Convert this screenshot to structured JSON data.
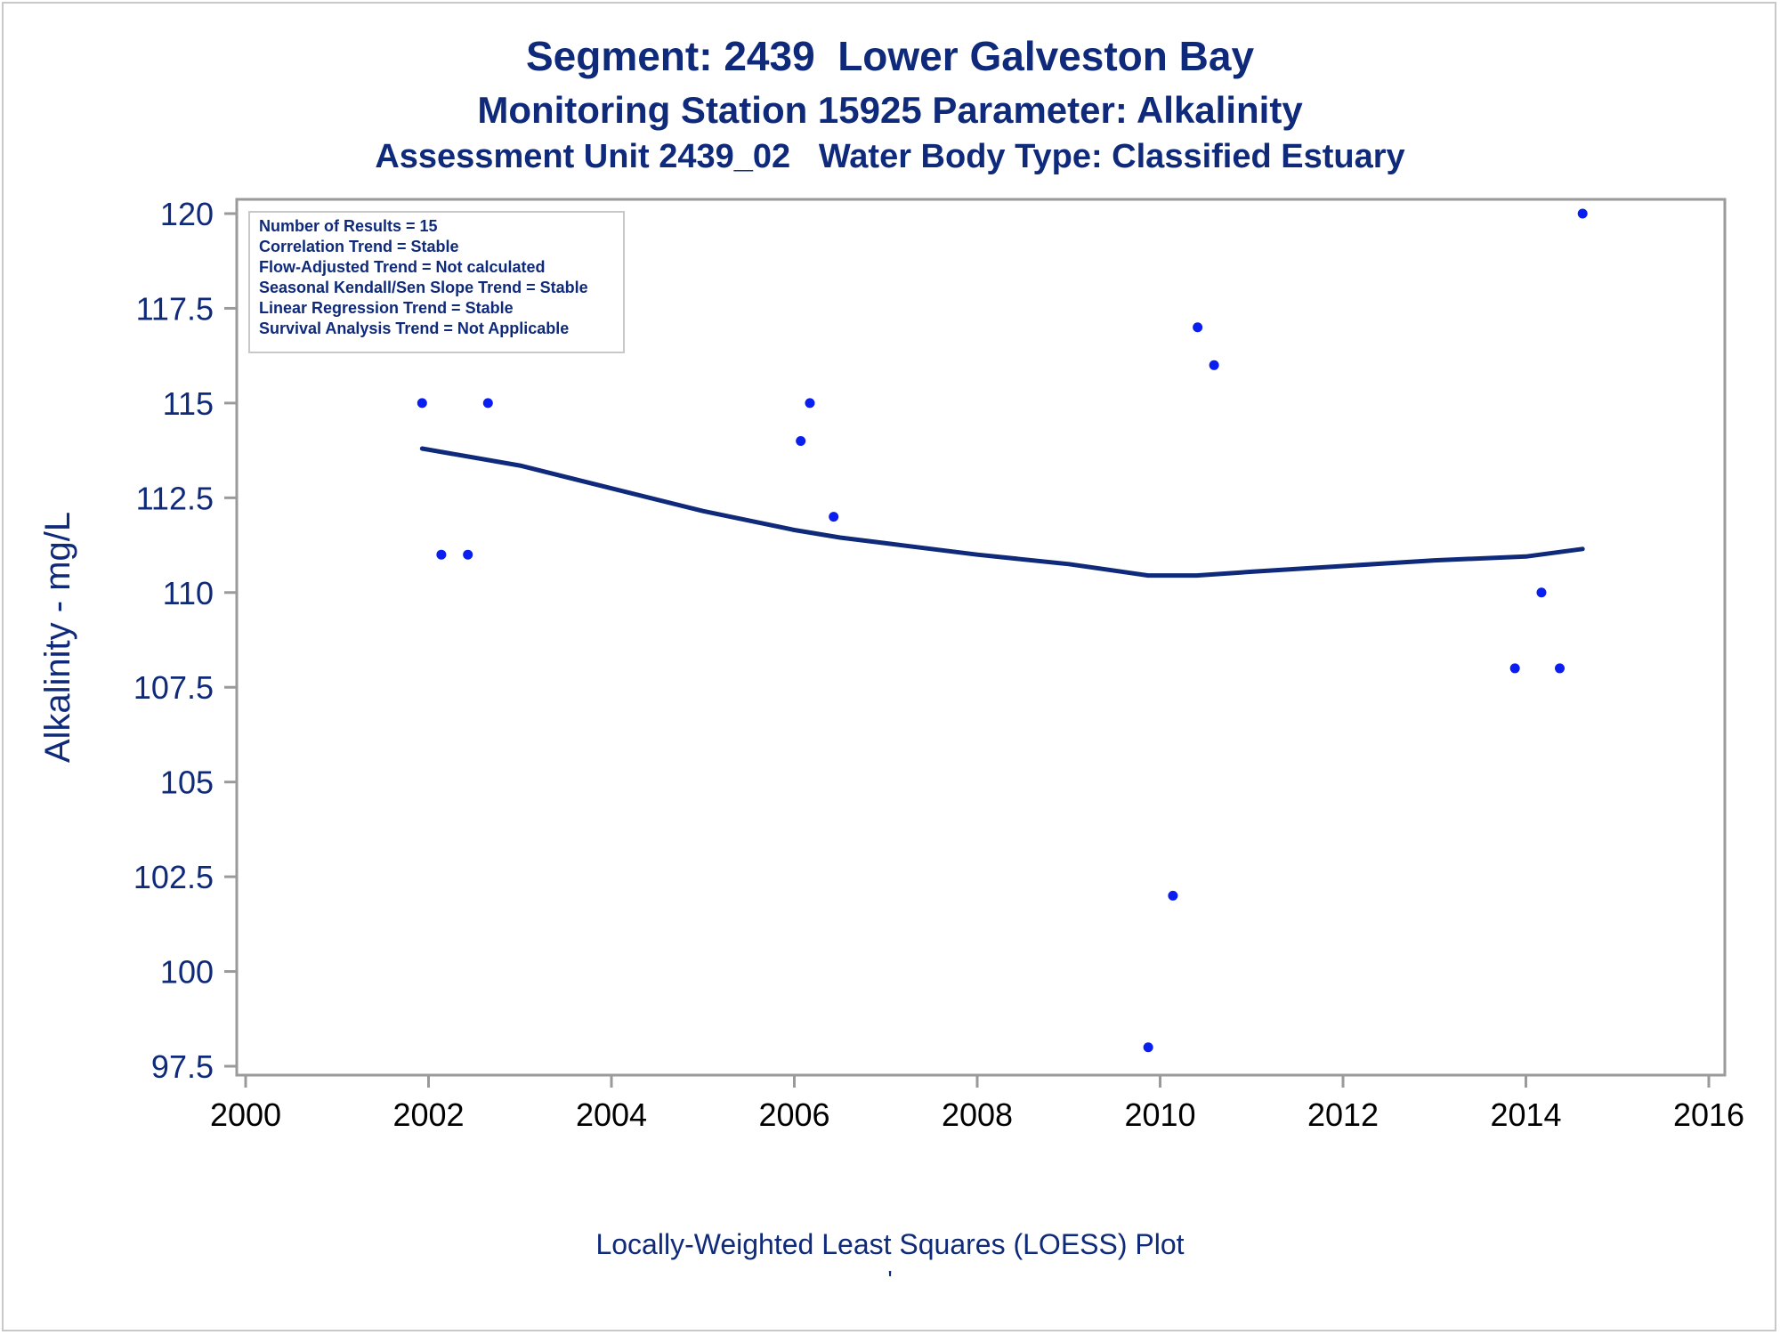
{
  "titles": {
    "line1": "Segment: 2439  Lower Galveston Bay",
    "line2": "Monitoring Station 15925 Parameter: Alkalinity",
    "line3": "Assessment Unit 2439_02   Water Body Type: Classified Estuary"
  },
  "footnote": "Locally-Weighted Least Squares (LOESS) Plot",
  "footnote_mark": "'",
  "colors": {
    "title": "#0f2a7a",
    "points": "#0a1ef0",
    "loess": "#0f2a7a",
    "axis": "#9a9a9a"
  },
  "chart_data": {
    "type": "scatter",
    "ylabel": "Alkalinity - mg/L",
    "xlim": [
      2000,
      2016
    ],
    "ylim": [
      97.5,
      120
    ],
    "x_ticks": [
      2000,
      2002,
      2004,
      2006,
      2008,
      2010,
      2012,
      2014,
      2016
    ],
    "y_ticks": [
      97.5,
      100,
      102.5,
      105,
      107.5,
      110,
      112.5,
      115,
      117.5,
      120
    ],
    "y_tick_labels": [
      "97.5",
      "100",
      "102.5",
      "105",
      "107.5",
      "110",
      "112.5",
      "115",
      "117.5",
      "120"
    ],
    "points": [
      {
        "x": 2001.93,
        "y": 115
      },
      {
        "x": 2002.14,
        "y": 111
      },
      {
        "x": 2002.43,
        "y": 111
      },
      {
        "x": 2002.65,
        "y": 115
      },
      {
        "x": 2006.07,
        "y": 114
      },
      {
        "x": 2006.17,
        "y": 115
      },
      {
        "x": 2006.43,
        "y": 112
      },
      {
        "x": 2009.87,
        "y": 98
      },
      {
        "x": 2010.14,
        "y": 102
      },
      {
        "x": 2010.41,
        "y": 117
      },
      {
        "x": 2010.59,
        "y": 116
      },
      {
        "x": 2013.88,
        "y": 108
      },
      {
        "x": 2014.17,
        "y": 110
      },
      {
        "x": 2014.37,
        "y": 108
      },
      {
        "x": 2014.62,
        "y": 120
      }
    ],
    "loess": [
      {
        "x": 2001.93,
        "y": 113.8
      },
      {
        "x": 2003.0,
        "y": 113.35
      },
      {
        "x": 2004.0,
        "y": 112.75
      },
      {
        "x": 2005.0,
        "y": 112.15
      },
      {
        "x": 2006.0,
        "y": 111.65
      },
      {
        "x": 2006.5,
        "y": 111.45
      },
      {
        "x": 2007.0,
        "y": 111.3
      },
      {
        "x": 2008.0,
        "y": 111.0
      },
      {
        "x": 2009.0,
        "y": 110.75
      },
      {
        "x": 2009.87,
        "y": 110.45
      },
      {
        "x": 2010.4,
        "y": 110.45
      },
      {
        "x": 2011.0,
        "y": 110.55
      },
      {
        "x": 2012.0,
        "y": 110.7
      },
      {
        "x": 2013.0,
        "y": 110.85
      },
      {
        "x": 2014.0,
        "y": 110.95
      },
      {
        "x": 2014.62,
        "y": 111.15
      }
    ],
    "legend_position": "top-left",
    "stats": [
      "Number of Results = 15",
      "Correlation Trend = Stable",
      "Flow-Adjusted Trend = Not calculated",
      "Seasonal Kendall/Sen Slope Trend = Stable",
      "Linear Regression Trend = Stable",
      "Survival Analysis Trend = Not Applicable"
    ]
  }
}
